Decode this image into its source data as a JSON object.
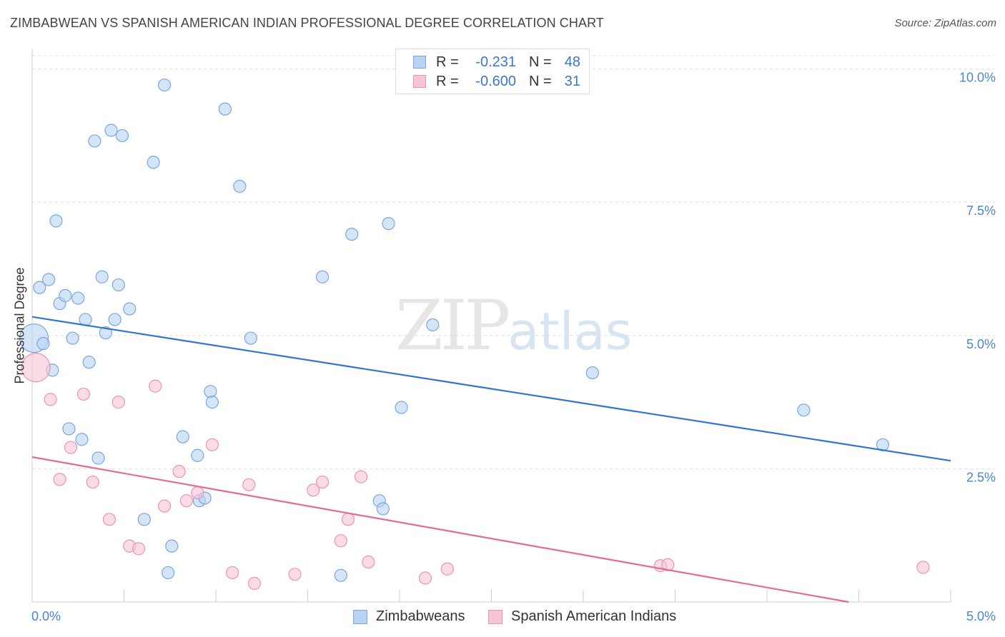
{
  "title": "ZIMBABWEAN VS SPANISH AMERICAN INDIAN PROFESSIONAL DEGREE CORRELATION CHART",
  "source": "Source: ZipAtlas.com",
  "watermark": {
    "zip": "ZIP",
    "atlas": "atlas"
  },
  "legend": {
    "rows": [
      {
        "r_label": "R =",
        "r_value": "-0.231",
        "n_label": "N =",
        "n_value": "48"
      },
      {
        "r_label": "R =",
        "r_value": "-0.600",
        "n_label": "N =",
        "n_value": "31"
      }
    ]
  },
  "bottom_legend": {
    "series1": "Zimbabweans",
    "series2": "Spanish American Indians"
  },
  "chart_data": {
    "type": "scatter",
    "title": "ZIMBABWEAN VS SPANISH AMERICAN INDIAN PROFESSIONAL DEGREE CORRELATION CHART",
    "xlabel": "",
    "ylabel": "Professional Degree",
    "xlim": [
      0,
      5
    ],
    "ylim": [
      0,
      10.25
    ],
    "x_tick_labels": {
      "left": "0.0%",
      "right": "5.0%"
    },
    "y_ticks": [
      {
        "value": 10.0,
        "label": "10.0%"
      },
      {
        "value": 7.5,
        "label": "7.5%"
      },
      {
        "value": 5.0,
        "label": "5.0%"
      },
      {
        "value": 2.5,
        "label": "2.5%"
      }
    ],
    "colors": {
      "series1_fill": "#b9d3f3",
      "series1_stroke": "#7aa6dd",
      "series1_line": "#2f74d0",
      "series2_fill": "#f7c5d5",
      "series2_stroke": "#ee93b0",
      "series2_line": "#e36a96"
    },
    "series": [
      {
        "name": "Zimbabweans",
        "trend": {
          "x0": 0,
          "y0": 5.35,
          "x1": 5,
          "y1": 2.65
        },
        "points": [
          {
            "x": 0.01,
            "y": 4.95,
            "big": true
          },
          {
            "x": 0.04,
            "y": 5.9
          },
          {
            "x": 0.06,
            "y": 4.85
          },
          {
            "x": 0.09,
            "y": 6.05
          },
          {
            "x": 0.11,
            "y": 4.35
          },
          {
            "x": 0.13,
            "y": 7.15
          },
          {
            "x": 0.15,
            "y": 5.6
          },
          {
            "x": 0.18,
            "y": 5.75
          },
          {
            "x": 0.2,
            "y": 3.25
          },
          {
            "x": 0.22,
            "y": 4.95
          },
          {
            "x": 0.25,
            "y": 5.7
          },
          {
            "x": 0.27,
            "y": 3.05
          },
          {
            "x": 0.29,
            "y": 5.3
          },
          {
            "x": 0.31,
            "y": 4.5
          },
          {
            "x": 0.34,
            "y": 8.65
          },
          {
            "x": 0.36,
            "y": 2.7
          },
          {
            "x": 0.38,
            "y": 6.1
          },
          {
            "x": 0.4,
            "y": 5.05
          },
          {
            "x": 0.43,
            "y": 8.85
          },
          {
            "x": 0.45,
            "y": 5.3
          },
          {
            "x": 0.47,
            "y": 5.95
          },
          {
            "x": 0.49,
            "y": 8.75
          },
          {
            "x": 0.53,
            "y": 5.5
          },
          {
            "x": 0.61,
            "y": 1.55
          },
          {
            "x": 0.66,
            "y": 8.25
          },
          {
            "x": 0.72,
            "y": 9.7
          },
          {
            "x": 0.74,
            "y": 0.55
          },
          {
            "x": 0.76,
            "y": 1.05
          },
          {
            "x": 0.82,
            "y": 3.1
          },
          {
            "x": 0.9,
            "y": 2.75
          },
          {
            "x": 0.91,
            "y": 1.9
          },
          {
            "x": 0.94,
            "y": 1.95
          },
          {
            "x": 0.97,
            "y": 3.95
          },
          {
            "x": 0.98,
            "y": 3.75
          },
          {
            "x": 1.05,
            "y": 9.25
          },
          {
            "x": 1.13,
            "y": 7.8
          },
          {
            "x": 1.19,
            "y": 4.95
          },
          {
            "x": 1.58,
            "y": 6.1
          },
          {
            "x": 1.68,
            "y": 0.5
          },
          {
            "x": 1.74,
            "y": 6.9
          },
          {
            "x": 1.89,
            "y": 1.9
          },
          {
            "x": 1.91,
            "y": 1.75
          },
          {
            "x": 1.94,
            "y": 7.1
          },
          {
            "x": 2.01,
            "y": 3.65
          },
          {
            "x": 2.18,
            "y": 5.2
          },
          {
            "x": 3.05,
            "y": 4.3
          },
          {
            "x": 4.2,
            "y": 3.6
          },
          {
            "x": 4.63,
            "y": 2.95
          }
        ]
      },
      {
        "name": "Spanish American Indians",
        "trend": {
          "x0": 0,
          "y0": 2.72,
          "x1": 5,
          "y1": -0.34
        },
        "points": [
          {
            "x": 0.02,
            "y": 4.4,
            "big": true
          },
          {
            "x": 0.1,
            "y": 3.8
          },
          {
            "x": 0.15,
            "y": 2.3
          },
          {
            "x": 0.21,
            "y": 2.9
          },
          {
            "x": 0.28,
            "y": 3.9
          },
          {
            "x": 0.33,
            "y": 2.25
          },
          {
            "x": 0.42,
            "y": 1.55
          },
          {
            "x": 0.47,
            "y": 3.75
          },
          {
            "x": 0.53,
            "y": 1.05
          },
          {
            "x": 0.58,
            "y": 1.0
          },
          {
            "x": 0.67,
            "y": 4.05
          },
          {
            "x": 0.72,
            "y": 1.8
          },
          {
            "x": 0.8,
            "y": 2.45
          },
          {
            "x": 0.84,
            "y": 1.9
          },
          {
            "x": 0.9,
            "y": 2.05
          },
          {
            "x": 0.98,
            "y": 2.95
          },
          {
            "x": 1.09,
            "y": 0.55
          },
          {
            "x": 1.18,
            "y": 2.2
          },
          {
            "x": 1.21,
            "y": 0.35
          },
          {
            "x": 1.43,
            "y": 0.52
          },
          {
            "x": 1.53,
            "y": 2.1
          },
          {
            "x": 1.58,
            "y": 2.25
          },
          {
            "x": 1.68,
            "y": 1.15
          },
          {
            "x": 1.72,
            "y": 1.55
          },
          {
            "x": 1.79,
            "y": 2.35
          },
          {
            "x": 1.83,
            "y": 0.75
          },
          {
            "x": 2.14,
            "y": 0.45
          },
          {
            "x": 2.26,
            "y": 0.62
          },
          {
            "x": 3.42,
            "y": 0.68
          },
          {
            "x": 3.46,
            "y": 0.7
          },
          {
            "x": 4.85,
            "y": 0.65
          }
        ]
      }
    ]
  }
}
